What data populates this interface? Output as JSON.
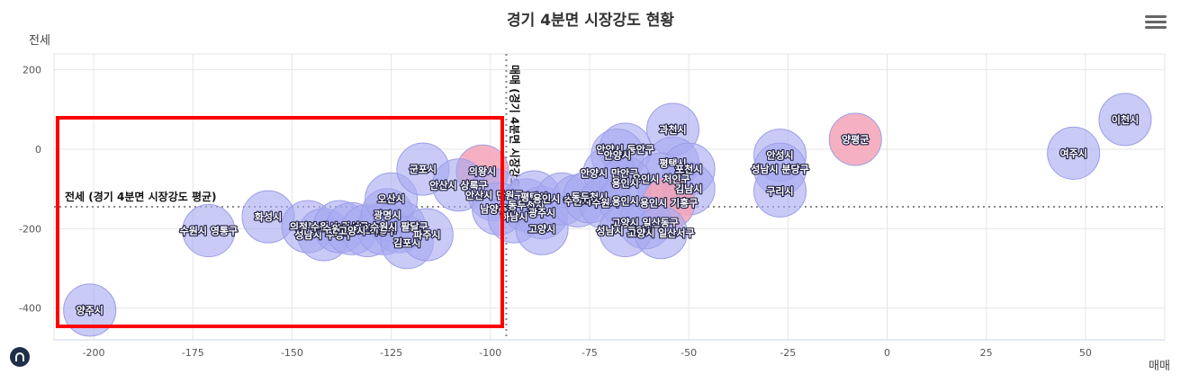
{
  "chart_data": {
    "type": "bubble",
    "title": "경기 4분면 시장강도 현황",
    "xlabel": "매매",
    "ylabel": "전세",
    "xlim": [
      -210,
      70
    ],
    "ylim": [
      -480,
      240
    ],
    "x_ticks": [
      -200,
      -175,
      -150,
      -125,
      -100,
      -75,
      -50,
      -25,
      0,
      25,
      50
    ],
    "y_ticks": [
      200,
      0,
      -200,
      -400
    ],
    "avg_x": -96,
    "avg_y": -145,
    "avg_x_label": "매매 (경기 4분면 시장강도 평균)",
    "avg_y_label": "전세 (경기 4분면 시장강도 평균)",
    "colors": {
      "bubble": "#a8aaf0",
      "bubble_pink": "#f3a3b6",
      "grid": "#e6e6e6",
      "highlight": "#ff0000"
    },
    "points": [
      {
        "label": "양주시",
        "x": -201,
        "y": -405
      },
      {
        "label": "수원시 영통구",
        "x": -171,
        "y": -205
      },
      {
        "label": "화성시",
        "x": -156,
        "y": -170
      },
      {
        "label": "의정부시",
        "x": -146,
        "y": -195
      },
      {
        "label": "성남시 수정구",
        "x": -142,
        "y": -215
      },
      {
        "label": "수원시 권선구",
        "x": -138,
        "y": -195
      },
      {
        "label": "수원시 장안구",
        "x": -135,
        "y": -200
      },
      {
        "label": "고양시 덕양구",
        "x": -131,
        "y": -205
      },
      {
        "label": "시흥시",
        "x": -127,
        "y": -200
      },
      {
        "label": "광명시",
        "x": -126,
        "y": -165
      },
      {
        "label": "오산시",
        "x": -125,
        "y": -125
      },
      {
        "label": "수원시 팔달구",
        "x": -123,
        "y": -195
      },
      {
        "label": "김포시",
        "x": -121,
        "y": -235
      },
      {
        "label": "파주시",
        "x": -116,
        "y": -215
      },
      {
        "label": "군포시",
        "x": -117,
        "y": -50
      },
      {
        "label": "의왕시",
        "x": -102,
        "y": -55,
        "pink": true
      },
      {
        "label": "안산시 상록구",
        "x": -108,
        "y": -90
      },
      {
        "label": "안산시 단원구",
        "x": -99,
        "y": -115
      },
      {
        "label": "남양주시",
        "x": -98,
        "y": -150
      },
      {
        "label": "하남시",
        "x": -94,
        "y": -170
      },
      {
        "label": "동두천시",
        "x": -91,
        "y": -140
      },
      {
        "label": "평택시",
        "x": -89,
        "y": -120
      },
      {
        "label": "광주시",
        "x": -87,
        "y": -160
      },
      {
        "label": "고양시",
        "x": -87,
        "y": -200
      },
      {
        "label": "용인시 수지구",
        "x": -82,
        "y": -125
      },
      {
        "label": "수원시",
        "x": -78,
        "y": -130
      },
      {
        "label": "동두천시",
        "x": -75,
        "y": -120
      },
      {
        "label": "안양시 동안구",
        "x": -66,
        "y": 0
      },
      {
        "label": "안양시",
        "x": -68,
        "y": -15
      },
      {
        "label": "안양시 만안구",
        "x": -70,
        "y": -60
      },
      {
        "label": "과천시",
        "x": -54,
        "y": 50
      },
      {
        "label": "평택시",
        "x": -54,
        "y": -35
      },
      {
        "label": "포천시",
        "x": -50,
        "y": -50
      },
      {
        "label": "용인시 처인구",
        "x": -57,
        "y": -75
      },
      {
        "label": "용인시",
        "x": -66,
        "y": -85
      },
      {
        "label": "수원시",
        "x": -71,
        "y": -135
      },
      {
        "label": "용인시",
        "x": -66,
        "y": -130
      },
      {
        "label": "김남시",
        "x": -50,
        "y": -100
      },
      {
        "label": "용인시 기흥구",
        "x": -55,
        "y": -135,
        "pink": true
      },
      {
        "label": "고양시 일산동구",
        "x": -61,
        "y": -185
      },
      {
        "label": "성남시 고양시",
        "x": -66,
        "y": -205
      },
      {
        "label": "고양시 일산서구",
        "x": -57,
        "y": -210
      },
      {
        "label": "안성시",
        "x": -27,
        "y": -15
      },
      {
        "label": "성남시 분당구",
        "x": -27,
        "y": -50
      },
      {
        "label": "구리시",
        "x": -27,
        "y": -105
      },
      {
        "label": "양평군",
        "x": -8,
        "y": 25,
        "pink": true
      },
      {
        "label": "여주시",
        "x": 47,
        "y": -10
      },
      {
        "label": "이천시",
        "x": 60,
        "y": 75
      }
    ]
  }
}
